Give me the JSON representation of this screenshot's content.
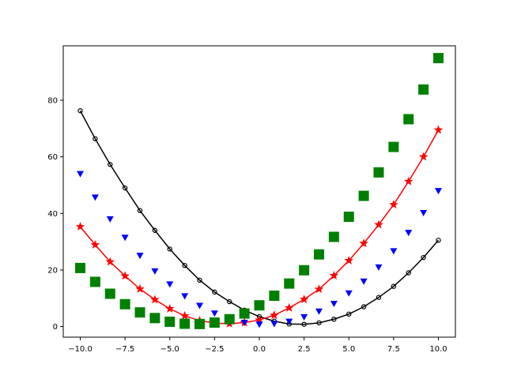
{
  "chart_data": {
    "type": "line",
    "title": "",
    "xlabel": "",
    "ylabel": "",
    "xlim": [
      -10.95,
      10.95
    ],
    "ylim": [
      -3.75,
      99.25
    ],
    "x_ticks": [
      -10.0,
      -7.5,
      -5.0,
      -2.5,
      0.0,
      2.5,
      5.0,
      7.5,
      10.0
    ],
    "x_tick_labels": [
      "−10.0",
      "−7.5",
      "−5.0",
      "−2.5",
      "0.0",
      "2.5",
      "5.0",
      "7.5",
      "10.0"
    ],
    "y_ticks": [
      0,
      20,
      40,
      60,
      80
    ],
    "y_tick_labels": [
      "0",
      "20",
      "40",
      "60",
      "80"
    ],
    "grid": false,
    "legend": "none",
    "x": [
      -10.0,
      -9.1667,
      -8.3333,
      -7.5,
      -6.6667,
      -5.8333,
      -5.0,
      -4.1667,
      -3.3333,
      -2.5,
      -1.6667,
      -0.8333,
      0.0,
      0.8333,
      1.6667,
      2.5,
      3.3333,
      4.1667,
      5.0,
      5.8333,
      6.6667,
      7.5,
      8.3333,
      9.1667,
      10.0
    ],
    "series": [
      {
        "style": "black line with open circle markers",
        "color": "#000000",
        "marker": "circle-open",
        "line": true,
        "values": [
          76.3,
          66.4,
          57.3,
          49.0,
          41.0,
          34.0,
          27.4,
          21.6,
          16.4,
          12.2,
          8.8,
          5.8,
          3.5,
          1.9,
          0.9,
          0.8,
          1.3,
          2.6,
          4.4,
          7.0,
          10.3,
          14.2,
          19.0,
          24.4,
          30.5
        ]
      },
      {
        "style": "red line with star markers",
        "color": "#ff0000",
        "marker": "star",
        "line": true,
        "values": [
          35.3,
          28.9,
          22.9,
          17.9,
          13.3,
          9.5,
          6.3,
          3.8,
          2.1,
          1.2,
          1.0,
          1.4,
          2.3,
          4.0,
          6.6,
          9.6,
          13.2,
          18.0,
          23.3,
          29.4,
          36.0,
          43.1,
          51.3,
          60.0,
          69.5
        ]
      },
      {
        "style": "blue downward triangle markers",
        "color": "#0000ff",
        "marker": "triangle-down",
        "line": false,
        "values": [
          54.0,
          45.7,
          38.0,
          31.5,
          25.1,
          19.6,
          15.0,
          10.8,
          7.4,
          4.7,
          2.6,
          1.4,
          0.8,
          1.0,
          1.8,
          3.4,
          5.4,
          8.1,
          11.8,
          16.0,
          21.0,
          26.7,
          33.2,
          40.2,
          48.0
        ]
      },
      {
        "style": "green square markers",
        "color": "#008000",
        "marker": "square",
        "line": false,
        "values": [
          20.7,
          15.8,
          11.6,
          7.9,
          5.0,
          3.0,
          1.7,
          1.0,
          0.9,
          1.4,
          2.6,
          4.6,
          7.5,
          10.9,
          15.2,
          19.9,
          25.5,
          31.7,
          38.8,
          46.2,
          54.5,
          63.5,
          73.3,
          83.8,
          94.9
        ]
      }
    ]
  }
}
